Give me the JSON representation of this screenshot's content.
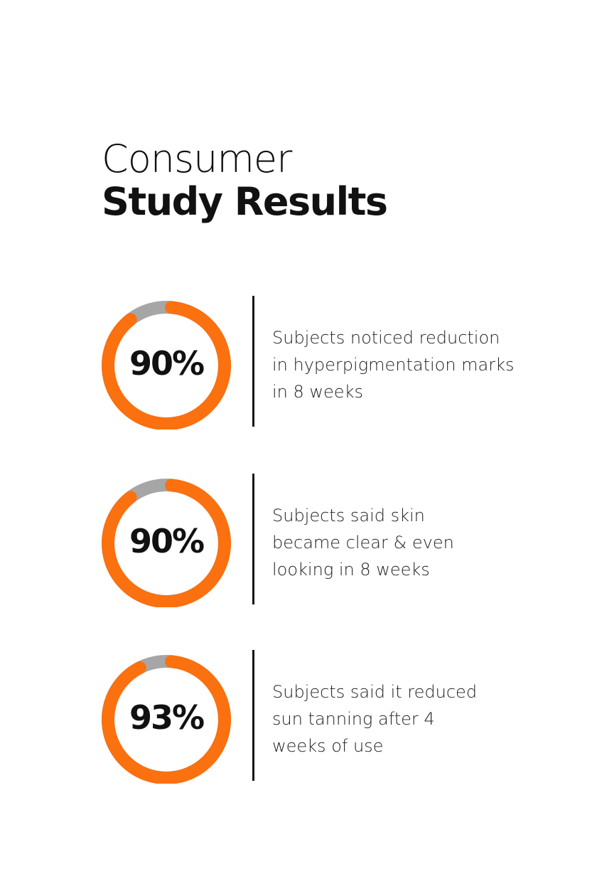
{
  "title": {
    "line1": "Consumer",
    "line2": "Study Results"
  },
  "colors": {
    "accent": "#fb700f",
    "track": "#a6a6a6",
    "text": "#111111"
  },
  "chart_data": [
    {
      "type": "donut",
      "value": 90,
      "label": "90%",
      "description": [
        "Subjects noticed reduction",
        "in hyperpigmentation marks",
        "in 8 weeks"
      ]
    },
    {
      "type": "donut",
      "value": 90,
      "label": "90%",
      "description": [
        "Subjects said skin",
        "became clear & even",
        "looking in 8 weeks"
      ]
    },
    {
      "type": "donut",
      "value": 93,
      "label": "93%",
      "description": [
        "Subjects said it reduced",
        "sun tanning after 4",
        "weeks of use"
      ]
    }
  ]
}
